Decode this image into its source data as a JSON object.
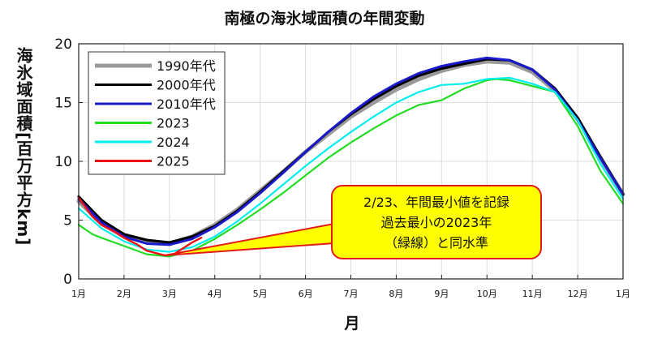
{
  "chart_data": {
    "type": "line",
    "title": "南極の海氷域面積の年間変動",
    "xlabel": "月",
    "ylabel": "海氷域面積[百万平方km]",
    "x_ticks": [
      "1月",
      "2月",
      "3月",
      "4月",
      "5月",
      "6月",
      "7月",
      "8月",
      "9月",
      "10月",
      "11月",
      "12月",
      "1月"
    ],
    "ylim": [
      0,
      20
    ],
    "y_ticks": [
      0,
      5,
      10,
      15,
      20
    ],
    "grid": true,
    "legend_position": "top-left",
    "series": [
      {
        "name": "1990年代",
        "color": "#999999",
        "x": [
          0,
          0.5,
          1,
          1.5,
          2,
          2.5,
          3,
          3.5,
          4,
          4.5,
          5,
          5.5,
          6,
          6.5,
          7,
          7.5,
          8,
          8.5,
          9,
          9.5,
          10,
          10.5,
          11,
          11.5,
          12
        ],
        "y": [
          6.6,
          4.7,
          3.6,
          3.1,
          3.0,
          3.6,
          4.6,
          5.9,
          7.5,
          9.1,
          10.8,
          12.3,
          13.8,
          15.0,
          16.1,
          17.0,
          17.7,
          18.2,
          18.5,
          18.4,
          17.6,
          16.0,
          13.6,
          10.3,
          7.2
        ]
      },
      {
        "name": "2000年代",
        "color": "#000000",
        "x": [
          0,
          0.5,
          1,
          1.5,
          2,
          2.5,
          3,
          3.5,
          4,
          4.5,
          5,
          5.5,
          6,
          6.5,
          7,
          7.5,
          8,
          8.5,
          9,
          9.5,
          10,
          10.5,
          11,
          11.5,
          12
        ],
        "y": [
          7.0,
          5.0,
          3.8,
          3.3,
          3.1,
          3.6,
          4.5,
          5.8,
          7.4,
          9.1,
          10.8,
          12.5,
          14.0,
          15.3,
          16.4,
          17.3,
          17.9,
          18.3,
          18.7,
          18.6,
          17.8,
          16.2,
          13.7,
          10.4,
          7.2
        ]
      },
      {
        "name": "2010年代",
        "color": "#1a1acc",
        "x": [
          0,
          0.5,
          1,
          1.5,
          2,
          2.5,
          3,
          3.5,
          4,
          4.5,
          5,
          5.5,
          6,
          6.5,
          7,
          7.5,
          8,
          8.5,
          9,
          9.5,
          10,
          10.5,
          11,
          11.5,
          12
        ],
        "y": [
          6.8,
          4.8,
          3.6,
          3.0,
          2.9,
          3.4,
          4.4,
          5.7,
          7.3,
          9.0,
          10.8,
          12.5,
          14.1,
          15.5,
          16.6,
          17.5,
          18.1,
          18.5,
          18.8,
          18.6,
          17.8,
          16.1,
          13.5,
          10.3,
          7.2
        ]
      },
      {
        "name": "2023",
        "color": "#22dd22",
        "x": [
          0,
          0.3,
          0.5,
          1,
          1.5,
          2,
          2.5,
          3,
          3.5,
          4,
          4.5,
          5,
          5.5,
          6,
          6.5,
          7,
          7.5,
          8,
          8.5,
          9,
          9.2,
          9.5,
          10,
          10.5,
          11,
          11.5,
          12
        ],
        "y": [
          4.6,
          3.8,
          3.5,
          2.8,
          2.1,
          1.9,
          2.4,
          3.4,
          4.6,
          5.9,
          7.3,
          8.8,
          10.3,
          11.6,
          12.8,
          13.9,
          14.8,
          15.2,
          16.2,
          16.9,
          17.0,
          16.9,
          16.4,
          15.9,
          13.0,
          9.2,
          6.4
        ]
      },
      {
        "name": "2024",
        "color": "#00eeee",
        "x": [
          0,
          0.5,
          1,
          1.5,
          2,
          2.5,
          3,
          3.5,
          4,
          4.5,
          5,
          5.5,
          6,
          6.5,
          7,
          7.5,
          8,
          8.5,
          9,
          9.5,
          10,
          10.5,
          11,
          11.5,
          12
        ],
        "y": [
          6.0,
          4.3,
          3.2,
          2.5,
          2.3,
          2.7,
          3.6,
          4.9,
          6.4,
          8.0,
          9.6,
          11.1,
          12.5,
          13.8,
          15.0,
          15.9,
          16.5,
          16.6,
          17.0,
          17.1,
          16.6,
          15.9,
          13.5,
          9.8,
          6.8
        ]
      },
      {
        "name": "2025",
        "color": "#ee1111",
        "x": [
          0,
          0.3,
          0.5,
          0.8,
          1,
          1.3,
          1.5,
          1.7,
          1.9,
          2.1,
          2.3,
          2.5,
          2.7
        ],
        "y": [
          6.9,
          5.3,
          4.6,
          4.0,
          3.5,
          2.9,
          2.4,
          2.2,
          2.0,
          2.1,
          2.6,
          3.1,
          3.5
        ]
      }
    ],
    "annotation": {
      "lines": [
        "2/23、年間最小値を記録",
        "過去最小の2023年",
        "（緑線）と同水準"
      ],
      "points_to": {
        "x": 1.9,
        "y": 2.0
      }
    }
  }
}
